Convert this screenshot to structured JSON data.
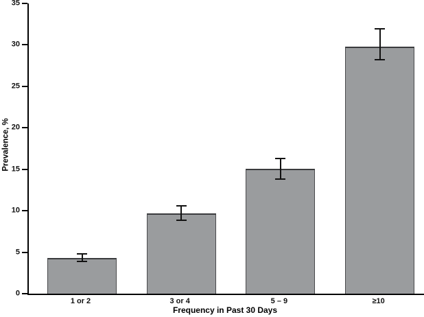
{
  "chart_data": {
    "type": "bar",
    "title": "",
    "xlabel": "Frequency in Past 30 Days",
    "ylabel": "Prevalence, %",
    "categories": [
      "1 or 2",
      "3 or 4",
      "5 – 9",
      "≥10"
    ],
    "values": [
      4.3,
      9.7,
      15.1,
      29.8
    ],
    "error_low": [
      3.8,
      8.8,
      13.7,
      28.1
    ],
    "error_high": [
      4.9,
      10.7,
      16.4,
      32.0
    ],
    "yticks": [
      0,
      5,
      10,
      15,
      20,
      25,
      30,
      35
    ],
    "ylim": [
      0,
      35
    ],
    "grid": false,
    "legend": null,
    "bar_fill_color": "#9a9c9e",
    "bar_border_color": "#48494b",
    "error_bar_color": "#111111",
    "axis_color": "#000000"
  }
}
